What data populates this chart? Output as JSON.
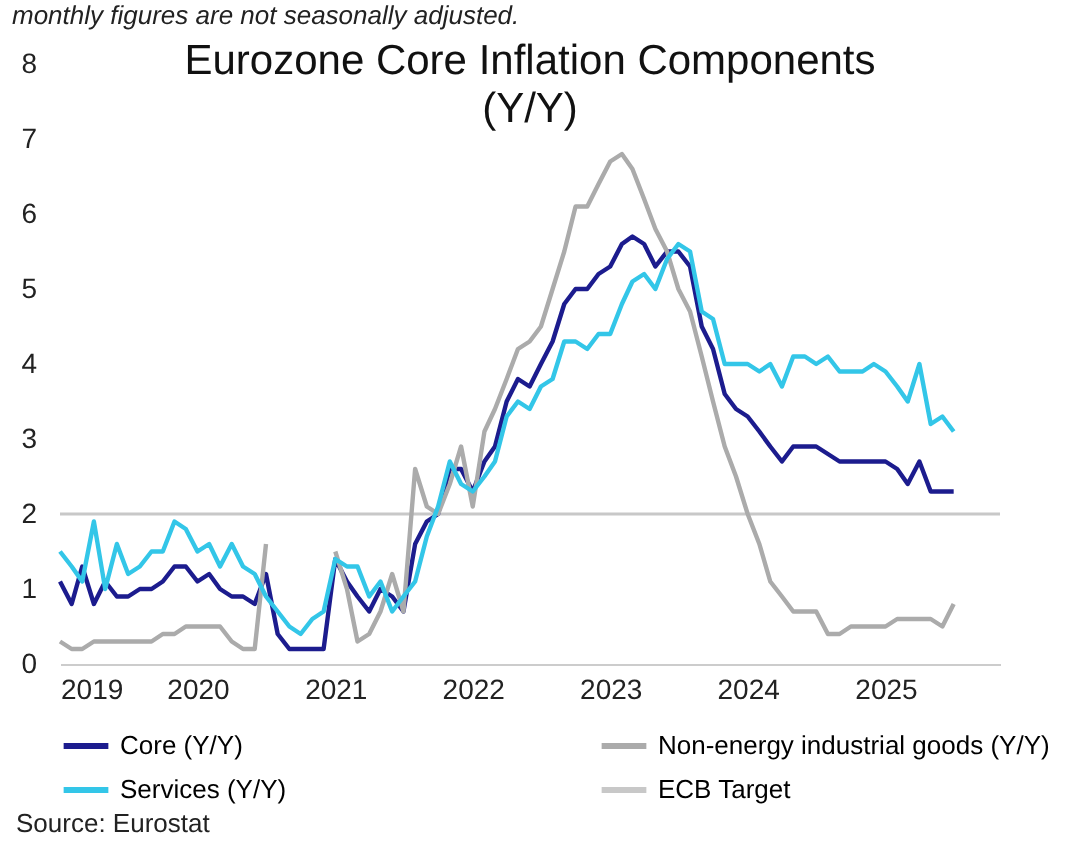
{
  "chart_data": {
    "type": "line",
    "title": "Eurozone Core Inflation Components\n(Y/Y)",
    "annotations": [
      "monthly figures are not seasonally adjusted.",
      "Source: Eurostat"
    ],
    "x": [
      "2019-01",
      "2019-02",
      "2019-03",
      "2019-04",
      "2019-05",
      "2019-06",
      "2019-07",
      "2019-08",
      "2019-09",
      "2019-10",
      "2019-11",
      "2019-12",
      "2020-01",
      "2020-02",
      "2020-03",
      "2020-04",
      "2020-05",
      "2020-06",
      "2020-07",
      "2020-08",
      "2020-09",
      "2020-10",
      "2020-11",
      "2020-12",
      "2021-01",
      "2021-02",
      "2021-03",
      "2021-04",
      "2021-05",
      "2021-06",
      "2021-07",
      "2021-08",
      "2021-09",
      "2021-10",
      "2021-11",
      "2021-12",
      "2022-01",
      "2022-02",
      "2022-03",
      "2022-04",
      "2022-05",
      "2022-06",
      "2022-07",
      "2022-08",
      "2022-09",
      "2022-10",
      "2022-11",
      "2022-12",
      "2023-01",
      "2023-02",
      "2023-03",
      "2023-04",
      "2023-05",
      "2023-06",
      "2023-07",
      "2023-08",
      "2023-09",
      "2023-10",
      "2023-11",
      "2023-12",
      "2024-01",
      "2024-02",
      "2024-03",
      "2024-04",
      "2024-05",
      "2024-06",
      "2024-07",
      "2024-08",
      "2024-09",
      "2024-10",
      "2024-11",
      "2024-12",
      "2025-01",
      "2025-02",
      "2025-03",
      "2025-04",
      "2025-05",
      "2025-06",
      "2025-07"
    ],
    "series": [
      {
        "name": "Core (Y/Y)",
        "color": "#1c1c8e",
        "values": [
          1.1,
          0.8,
          1.3,
          0.8,
          1.1,
          0.9,
          0.9,
          1.0,
          1.0,
          1.1,
          1.3,
          1.3,
          1.1,
          1.2,
          1.0,
          0.9,
          0.9,
          0.8,
          1.2,
          0.4,
          0.2,
          0.2,
          0.2,
          0.2,
          1.4,
          1.1,
          0.9,
          0.7,
          1.0,
          0.9,
          0.7,
          1.6,
          1.9,
          2.0,
          2.6,
          2.6,
          2.3,
          2.7,
          2.9,
          3.5,
          3.8,
          3.7,
          4.0,
          4.3,
          4.8,
          5.0,
          5.0,
          5.2,
          5.3,
          5.6,
          5.7,
          5.6,
          5.3,
          5.5,
          5.5,
          5.3,
          4.5,
          4.2,
          3.6,
          3.4,
          3.3,
          3.1,
          2.9,
          2.7,
          2.9,
          2.9,
          2.9,
          2.8,
          2.7,
          2.7,
          2.7,
          2.7,
          2.7,
          2.6,
          2.4,
          2.7,
          2.3,
          2.3,
          2.3
        ]
      },
      {
        "name": "Non-energy industrial goods (Y/Y)",
        "color": "#ababab",
        "values": [
          0.3,
          0.2,
          0.2,
          0.3,
          0.3,
          0.3,
          0.3,
          0.3,
          0.3,
          0.4,
          0.4,
          0.5,
          0.5,
          0.5,
          0.5,
          0.3,
          0.2,
          0.2,
          1.6,
          null,
          null,
          null,
          null,
          null,
          1.5,
          1.0,
          0.3,
          0.4,
          0.7,
          1.2,
          0.7,
          2.6,
          2.1,
          2.0,
          2.4,
          2.9,
          2.1,
          3.1,
          3.4,
          3.8,
          4.2,
          4.3,
          4.5,
          5.0,
          5.5,
          6.1,
          6.1,
          6.4,
          6.7,
          6.8,
          6.6,
          6.2,
          5.8,
          5.5,
          5.0,
          4.7,
          4.1,
          3.5,
          2.9,
          2.5,
          2.0,
          1.6,
          1.1,
          0.9,
          0.7,
          0.7,
          0.7,
          0.4,
          0.4,
          0.5,
          0.5,
          0.5,
          0.5,
          0.6,
          0.6,
          0.6,
          0.6,
          0.5,
          0.8
        ]
      },
      {
        "name": "Services (Y/Y)",
        "color": "#33c6e8",
        "values": [
          1.5,
          1.3,
          1.1,
          1.9,
          1.0,
          1.6,
          1.2,
          1.3,
          1.5,
          1.5,
          1.9,
          1.8,
          1.5,
          1.6,
          1.3,
          1.6,
          1.3,
          1.2,
          0.9,
          0.7,
          0.5,
          0.4,
          0.6,
          0.7,
          1.4,
          1.3,
          1.3,
          0.9,
          1.1,
          0.7,
          0.9,
          1.1,
          1.7,
          2.1,
          2.7,
          2.4,
          2.3,
          2.5,
          2.7,
          3.3,
          3.5,
          3.4,
          3.7,
          3.8,
          4.3,
          4.3,
          4.2,
          4.4,
          4.4,
          4.8,
          5.1,
          5.2,
          5.0,
          5.4,
          5.6,
          5.5,
          4.7,
          4.6,
          4.0,
          4.0,
          4.0,
          3.9,
          4.0,
          3.7,
          4.1,
          4.1,
          4.0,
          4.1,
          3.9,
          3.9,
          3.9,
          4.0,
          3.9,
          3.7,
          3.5,
          4.0,
          3.2,
          3.3,
          3.1
        ]
      }
    ],
    "ref_lines": [
      {
        "axis": "y",
        "value": 2,
        "label": "ECB Target",
        "color": "#c8c8c8"
      }
    ],
    "xlim": [
      "2019-01",
      "2025-11"
    ],
    "xticks": [
      "2019",
      "2020",
      "2021",
      "2022",
      "2023",
      "2024",
      "2025"
    ],
    "ylim": [
      0,
      8
    ],
    "yticks": [
      0,
      1,
      2,
      3,
      4,
      5,
      6,
      7,
      8
    ],
    "legend": "bottom",
    "grid": false
  }
}
